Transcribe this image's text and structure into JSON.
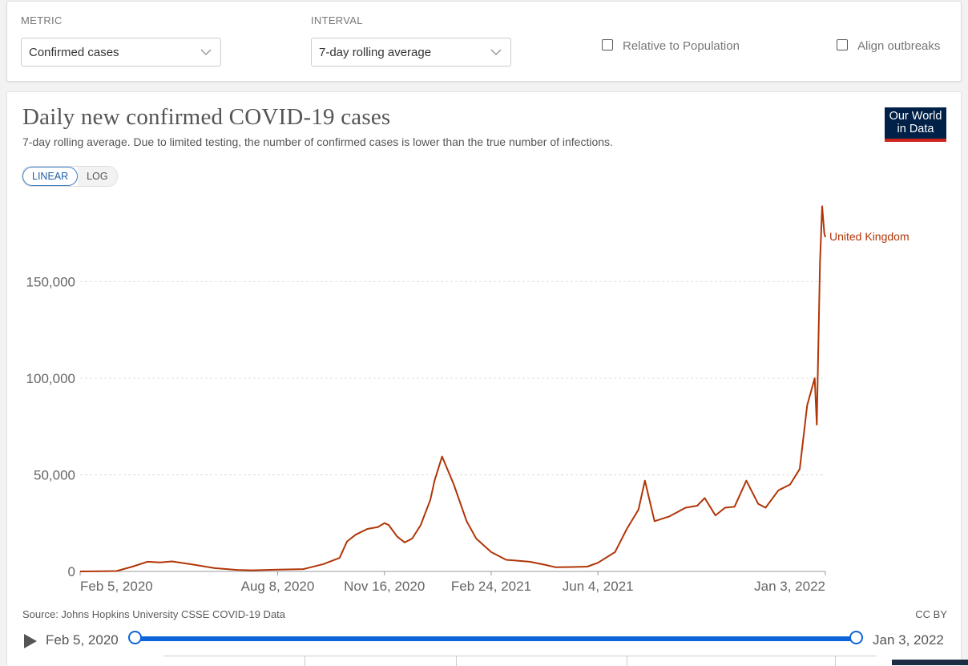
{
  "controls": {
    "metric_label": "METRIC",
    "metric_value": "Confirmed cases",
    "interval_label": "INTERVAL",
    "interval_value": "7-day rolling average",
    "relative_label": "Relative to Population",
    "align_label": "Align outbreaks"
  },
  "card": {
    "logo_line1": "Our World",
    "logo_line2": "in Data",
    "scale_linear": "LINEAR",
    "scale_log": "LOG",
    "source": "Source: Johns Hopkins University CSSE COVID-19 Data",
    "license": "CC BY"
  },
  "timeline": {
    "start_label": "Feb 5, 2020",
    "end_label": "Jan 3, 2022"
  },
  "colors": {
    "series": "#b13507",
    "accent": "#0c66d9",
    "logo_bg": "#002147",
    "logo_bar": "#ce261e"
  },
  "chart_data": {
    "type": "line",
    "title": "Daily new confirmed COVID-19 cases",
    "subtitle": "7-day rolling average. Due to limited testing, the number of confirmed cases is lower than the true number of infections.",
    "xlabel": "",
    "ylabel": "",
    "x_ticks": [
      "Feb 5, 2020",
      "Aug 8, 2020",
      "Nov 16, 2020",
      "Feb 24, 2021",
      "Jun 4, 2021",
      "Jan 3, 2022"
    ],
    "y_ticks": [
      0,
      50000,
      100000,
      150000
    ],
    "y_tick_labels": [
      "0",
      "50,000",
      "100,000",
      "150,000"
    ],
    "ylim": [
      0,
      190000
    ],
    "grid": true,
    "series": [
      {
        "name": "United Kingdom",
        "color": "#b13507",
        "points": [
          [
            "2020-02-05",
            0
          ],
          [
            "2020-03-10",
            200
          ],
          [
            "2020-03-25",
            2500
          ],
          [
            "2020-04-08",
            5000
          ],
          [
            "2020-04-20",
            4700
          ],
          [
            "2020-05-01",
            5200
          ],
          [
            "2020-05-20",
            3600
          ],
          [
            "2020-06-10",
            1700
          ],
          [
            "2020-07-01",
            800
          ],
          [
            "2020-07-15",
            600
          ],
          [
            "2020-08-08",
            900
          ],
          [
            "2020-09-01",
            1200
          ],
          [
            "2020-09-20",
            3800
          ],
          [
            "2020-10-05",
            7000
          ],
          [
            "2020-10-12",
            15500
          ],
          [
            "2020-10-20",
            19000
          ],
          [
            "2020-10-31",
            22000
          ],
          [
            "2020-11-10",
            23000
          ],
          [
            "2020-11-16",
            25000
          ],
          [
            "2020-11-20",
            24000
          ],
          [
            "2020-11-28",
            18000
          ],
          [
            "2020-12-05",
            15000
          ],
          [
            "2020-12-12",
            17000
          ],
          [
            "2020-12-20",
            24000
          ],
          [
            "2020-12-29",
            37000
          ],
          [
            "2021-01-02",
            47000
          ],
          [
            "2021-01-09",
            59500
          ],
          [
            "2021-01-20",
            45000
          ],
          [
            "2021-02-01",
            26000
          ],
          [
            "2021-02-10",
            17000
          ],
          [
            "2021-02-24",
            10000
          ],
          [
            "2021-03-10",
            6000
          ],
          [
            "2021-04-01",
            5000
          ],
          [
            "2021-04-15",
            3500
          ],
          [
            "2021-04-25",
            2200
          ],
          [
            "2021-05-10",
            2300
          ],
          [
            "2021-05-25",
            2500
          ],
          [
            "2021-06-04",
            4500
          ],
          [
            "2021-06-20",
            10000
          ],
          [
            "2021-07-01",
            22000
          ],
          [
            "2021-07-12",
            32000
          ],
          [
            "2021-07-18",
            47000
          ],
          [
            "2021-07-27",
            26000
          ],
          [
            "2021-08-10",
            28500
          ],
          [
            "2021-08-25",
            33000
          ],
          [
            "2021-09-05",
            34000
          ],
          [
            "2021-09-12",
            38000
          ],
          [
            "2021-09-22",
            29000
          ],
          [
            "2021-10-01",
            33000
          ],
          [
            "2021-10-10",
            33500
          ],
          [
            "2021-10-21",
            47000
          ],
          [
            "2021-11-01",
            35000
          ],
          [
            "2021-11-08",
            33000
          ],
          [
            "2021-11-20",
            42000
          ],
          [
            "2021-12-01",
            45000
          ],
          [
            "2021-12-10",
            53000
          ],
          [
            "2021-12-17",
            86000
          ],
          [
            "2021-12-24",
            100000
          ],
          [
            "2021-12-26",
            76000
          ],
          [
            "2021-12-29",
            160000
          ],
          [
            "2021-12-31",
            189000
          ],
          [
            "2022-01-02",
            175000
          ],
          [
            "2022-01-03",
            173000
          ]
        ]
      }
    ]
  }
}
